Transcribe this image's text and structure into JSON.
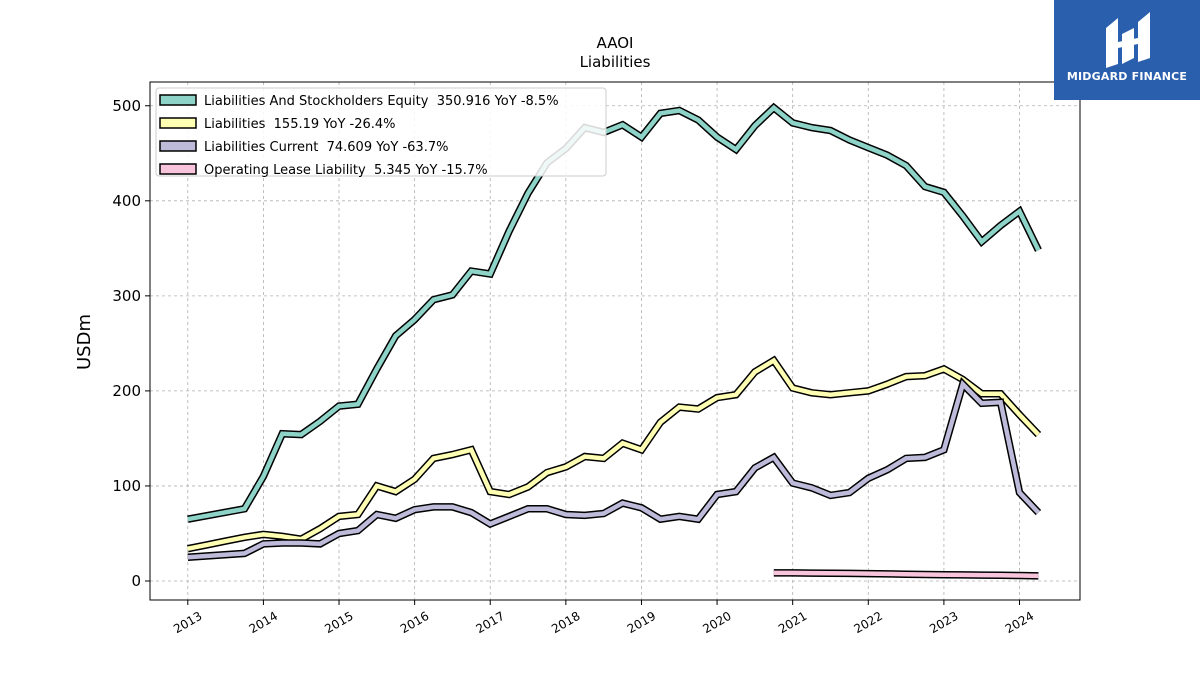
{
  "logo": {
    "text": "MIDGARD FINANCE"
  },
  "chart_data": {
    "type": "line",
    "title": "AAOI",
    "subtitle": "Liabilities",
    "ylabel": "USDm",
    "xlabel": "",
    "xlim": [
      2012.5,
      2024.8
    ],
    "ylim": [
      -20,
      525
    ],
    "x_ticks": [
      2013,
      2014,
      2015,
      2016,
      2017,
      2018,
      2019,
      2020,
      2021,
      2022,
      2023,
      2024
    ],
    "x_tick_labels": [
      "2013",
      "2014",
      "2015",
      "2016",
      "2017",
      "2018",
      "2019",
      "2020",
      "2021",
      "2022",
      "2023",
      "2024"
    ],
    "y_ticks": [
      0,
      100,
      200,
      300,
      400,
      500
    ],
    "y_tick_labels": [
      "0",
      "100",
      "200",
      "300",
      "400",
      "500"
    ],
    "grid": true,
    "legend_position": "top-left",
    "series": [
      {
        "name": "Liabilities And Stockholders Equity  350.916 YoY -8.5%",
        "color": "#8dd3c7",
        "x": [
          2013.0,
          2013.75,
          2014.0,
          2014.25,
          2014.5,
          2014.75,
          2015.0,
          2015.25,
          2015.5,
          2015.75,
          2016.0,
          2016.25,
          2016.5,
          2016.75,
          2017.0,
          2017.25,
          2017.5,
          2017.75,
          2018.0,
          2018.25,
          2018.5,
          2018.75,
          2019.0,
          2019.25,
          2019.5,
          2019.75,
          2020.0,
          2020.25,
          2020.5,
          2020.75,
          2021.0,
          2021.25,
          2021.5,
          2021.75,
          2022.0,
          2022.25,
          2022.5,
          2022.75,
          2023.0,
          2023.25,
          2023.5,
          2023.75,
          2024.0,
          2024.25
        ],
        "values": [
          65,
          76,
          110,
          155,
          154,
          168,
          184,
          186,
          223,
          258,
          275,
          296,
          301,
          326,
          323,
          368,
          408,
          440,
          455,
          477,
          472,
          480,
          467,
          492,
          495,
          485,
          467,
          454,
          479,
          498,
          482,
          477,
          474,
          464,
          456,
          448,
          437,
          415,
          409,
          384,
          357,
          374,
          389,
          348
        ],
        "end_value": 350.916
      },
      {
        "name": "Liabilities  155.19 YoY -26.4%",
        "color": "#ffffb3",
        "x": [
          2013.0,
          2013.25,
          2013.5,
          2013.75,
          2014.0,
          2014.25,
          2014.5,
          2014.75,
          2015.0,
          2015.25,
          2015.5,
          2015.75,
          2016.0,
          2016.25,
          2016.5,
          2016.75,
          2017.0,
          2017.25,
          2017.5,
          2017.75,
          2018.0,
          2018.25,
          2018.5,
          2018.75,
          2019.0,
          2019.25,
          2019.5,
          2019.75,
          2020.0,
          2020.25,
          2020.5,
          2020.75,
          2021.0,
          2021.25,
          2021.5,
          2021.75,
          2022.0,
          2022.25,
          2022.5,
          2022.75,
          2023.0,
          2023.25,
          2023.5,
          2023.75,
          2024.0,
          2024.25
        ],
        "values": [
          34,
          38,
          42,
          46,
          49,
          47,
          44,
          55,
          68,
          70,
          100,
          94,
          107,
          129,
          133,
          138,
          94,
          91,
          99,
          114,
          120,
          131,
          129,
          145,
          138,
          167,
          183,
          181,
          193,
          196,
          220,
          232,
          203,
          198,
          196,
          198,
          200,
          207,
          215,
          216,
          223,
          212,
          197,
          197,
          175,
          154
        ],
        "end_value": 155.19
      },
      {
        "name": "Liabilities Current  74.609 YoY -63.7%",
        "color": "#bebada",
        "x": [
          2013.0,
          2013.75,
          2014.0,
          2014.25,
          2014.5,
          2014.75,
          2015.0,
          2015.25,
          2015.5,
          2015.75,
          2016.0,
          2016.25,
          2016.5,
          2016.75,
          2017.0,
          2017.25,
          2017.5,
          2017.75,
          2018.0,
          2018.25,
          2018.5,
          2018.75,
          2019.0,
          2019.25,
          2019.5,
          2019.75,
          2020.0,
          2020.25,
          2020.5,
          2020.75,
          2021.0,
          2021.25,
          2021.5,
          2021.75,
          2022.0,
          2022.25,
          2022.5,
          2022.75,
          2023.0,
          2023.25,
          2023.5,
          2023.75,
          2024.0,
          2024.25
        ],
        "values": [
          25,
          29,
          39,
          40,
          40,
          39,
          50,
          53,
          70,
          66,
          75,
          78,
          78,
          72,
          60,
          68,
          76,
          76,
          70,
          69,
          71,
          82,
          77,
          65,
          68,
          65,
          91,
          94,
          119,
          130,
          103,
          98,
          90,
          93,
          108,
          117,
          129,
          130,
          138,
          207,
          187,
          188,
          93,
          72
        ],
        "end_value": 74.609
      },
      {
        "name": "Operating Lease Liability  5.345 YoY -15.7%",
        "color": "#f7c4dc",
        "x": [
          2020.75,
          2021.0,
          2021.25,
          2021.5,
          2021.75,
          2022.0,
          2022.25,
          2022.5,
          2022.75,
          2023.0,
          2023.25,
          2023.5,
          2023.75,
          2024.0,
          2024.25
        ],
        "values": [
          8.5,
          8.5,
          8.3,
          8.2,
          8.0,
          7.8,
          7.5,
          7.1,
          6.8,
          6.6,
          6.4,
          6.2,
          6.0,
          5.8,
          5.345
        ],
        "end_value": 5.345
      }
    ]
  }
}
